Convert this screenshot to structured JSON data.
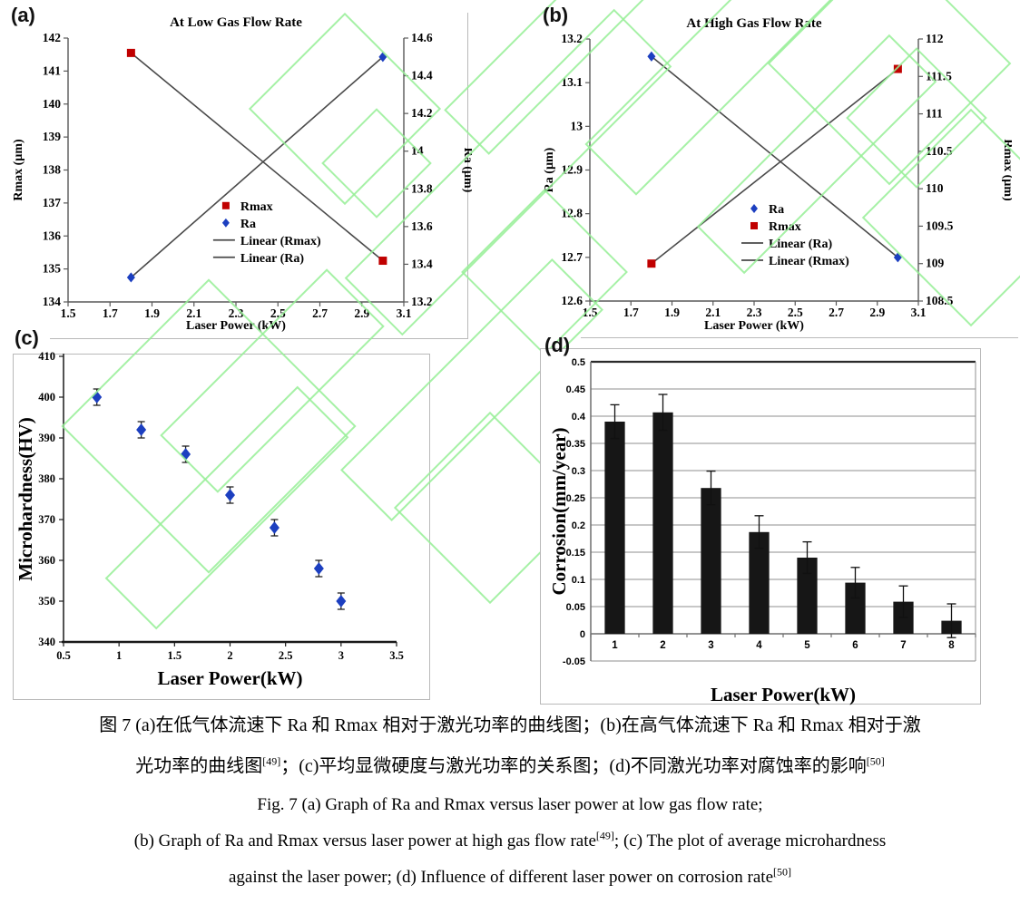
{
  "figure": {
    "panels": [
      {
        "letter": "(a)"
      },
      {
        "letter": "(b)"
      },
      {
        "letter": "(c)"
      },
      {
        "letter": "(d)"
      }
    ],
    "watermark_color": "#97ef97",
    "caption": {
      "zh_line1": "图 7 (a)在低气体流速下 Ra 和 Rmax 相对于激光功率的曲线图；(b)在高气体流速下 Ra 和 Rmax 相对于激",
      "zh_line2_pre": "光功率的曲线图",
      "zh_line2_sup1": "[49]",
      "zh_line2_mid": "；(c)平均显微硬度与激光功率的关系图；(d)不同激光功率对腐蚀率的影响",
      "zh_line2_sup2": "[50]",
      "en_line1": "Fig. 7 (a) Graph of Ra and Rmax versus laser power at low gas flow rate;",
      "en_line2_pre": "(b) Graph of Ra and Rmax versus laser power at high gas flow rate",
      "en_line2_sup": "[49]",
      "en_line2_post": "; (c) The plot of average microhardness",
      "en_line3_pre": "against the laser power; (d) Influence of different laser power on corrosion rate",
      "en_line3_sup": "[50]"
    }
  },
  "chart_data": [
    {
      "id": "a",
      "type": "scatter-dual",
      "title": "At Low Gas Flow Rate",
      "xlabel": "Laser Power (kW)",
      "ylabel_left": "Rmax (µm)",
      "ylabel_right": "Ra (µm)",
      "x": {
        "min": 1.5,
        "max": 3.1,
        "ticks": [
          "1.5",
          "1.7",
          "1.9",
          "2.1",
          "2.3",
          "2.5",
          "2.7",
          "2.9",
          "3.1"
        ]
      },
      "y_left": {
        "min": 134,
        "max": 142,
        "ticks": [
          "134",
          "135",
          "136",
          "137",
          "138",
          "139",
          "140",
          "141",
          "142"
        ]
      },
      "y_right": {
        "min": 13.2,
        "max": 14.6,
        "ticks": [
          "13.2",
          "13.4",
          "13.6",
          "13.8",
          "14",
          "14.2",
          "14.4",
          "14.6"
        ]
      },
      "axis_color": "#595959",
      "trend_color": "#4a4a4a",
      "series": [
        {
          "name": "Rmax",
          "axis": "left",
          "marker": "square",
          "color": "#c00000",
          "trend": true,
          "points": [
            [
              1.8,
              141.55
            ],
            [
              3.0,
              135.25
            ]
          ]
        },
        {
          "name": "Ra",
          "axis": "right",
          "marker": "diamond",
          "color": "#1c3fc0",
          "trend": true,
          "points": [
            [
              1.8,
              13.33
            ],
            [
              3.0,
              14.5
            ]
          ]
        }
      ],
      "legend": {
        "fx": 0.47,
        "fy": 0.635,
        "items": [
          {
            "type": "marker",
            "marker": "square",
            "color": "#c00000",
            "label": "Rmax"
          },
          {
            "type": "marker",
            "marker": "diamond",
            "color": "#1c3fc0",
            "label": "Ra"
          },
          {
            "type": "line",
            "label": "Linear (Rmax)"
          },
          {
            "type": "line",
            "label": "Linear (Ra)"
          }
        ]
      }
    },
    {
      "id": "b",
      "type": "scatter-dual",
      "title": "At High Gas Flow Rate",
      "xlabel": "Laser Power (kW)",
      "ylabel_left": "Ra (µm)",
      "ylabel_right": "Rmax (µm)",
      "x": {
        "min": 1.5,
        "max": 3.1,
        "ticks": [
          "1.5",
          "1.7",
          "1.9",
          "2.1",
          "2.3",
          "2.5",
          "2.7",
          "2.9",
          "3.1"
        ]
      },
      "y_left": {
        "min": 12.6,
        "max": 13.2,
        "ticks": [
          "12.6",
          "12.7",
          "12.8",
          "12.9",
          "13",
          "13.1",
          "13.2"
        ]
      },
      "y_right": {
        "min": 108.5,
        "max": 112,
        "ticks": [
          "108.5",
          "109",
          "109.5",
          "110",
          "110.5",
          "111",
          "111.5",
          "112"
        ]
      },
      "axis_color": "#595959",
      "trend_color": "#4a4a4a",
      "series": [
        {
          "name": "Ra",
          "axis": "left",
          "marker": "diamond",
          "color": "#1c3fc0",
          "trend": true,
          "points": [
            [
              1.8,
              13.16
            ],
            [
              3.0,
              12.7
            ]
          ]
        },
        {
          "name": "Rmax",
          "axis": "right",
          "marker": "square",
          "color": "#c00000",
          "trend": true,
          "points": [
            [
              1.8,
              109.0
            ],
            [
              3.0,
              111.6
            ]
          ]
        }
      ],
      "legend": {
        "fx": 0.5,
        "fy": 0.647,
        "items": [
          {
            "type": "marker",
            "marker": "diamond",
            "color": "#1c3fc0",
            "label": "Ra"
          },
          {
            "type": "marker",
            "marker": "square",
            "color": "#c00000",
            "label": "Rmax"
          },
          {
            "type": "line",
            "label": "Linear (Ra)"
          },
          {
            "type": "line",
            "label": "Linear (Rmax)"
          }
        ]
      }
    },
    {
      "id": "c",
      "type": "scatter",
      "title": "",
      "xlabel": "Laser Power(kW)",
      "ylabel": "Microhardness(HV)",
      "x": {
        "min": 0.5,
        "max": 3.5,
        "ticks": [
          "0.5",
          "1",
          "1.5",
          "2",
          "2.5",
          "3",
          "3.5"
        ]
      },
      "y": {
        "min": 340,
        "max": 410,
        "ticks": [
          "340",
          "350",
          "360",
          "370",
          "380",
          "390",
          "400",
          "410"
        ]
      },
      "axis_color": "#1a1a1a",
      "marker": "diamond",
      "marker_color": "#1c3fc0",
      "error_color": "#222222",
      "points": [
        [
          0.8,
          400
        ],
        [
          1.2,
          392
        ],
        [
          1.6,
          386
        ],
        [
          2.0,
          376
        ],
        [
          2.4,
          368
        ],
        [
          2.8,
          358
        ],
        [
          3.0,
          350
        ]
      ],
      "yerr": [
        2,
        2,
        2,
        2,
        2,
        2,
        2
      ]
    },
    {
      "id": "d",
      "type": "bar",
      "title": "",
      "xlabel": "Laser Power(kW)",
      "ylabel": "Corrosion(mm/year)",
      "categories": [
        "1",
        "2",
        "3",
        "4",
        "5",
        "6",
        "7",
        "8"
      ],
      "values": [
        0.39,
        0.407,
        0.268,
        0.187,
        0.14,
        0.094,
        0.059,
        0.024
      ],
      "errors": [
        0.031,
        0.033,
        0.031,
        0.03,
        0.029,
        0.028,
        0.029,
        0.031
      ],
      "y": {
        "min": -0.05,
        "max": 0.5,
        "ticks": [
          "-0.05",
          "0",
          "0.05",
          "0.1",
          "0.15",
          "0.2",
          "0.25",
          "0.3",
          "0.35",
          "0.4",
          "0.45",
          "0.5"
        ]
      },
      "grid": true,
      "bar_color": "#161616",
      "axis_color": "#6e6e6e",
      "grid_color": "#8f8f8f",
      "error_color": "#111111"
    }
  ]
}
